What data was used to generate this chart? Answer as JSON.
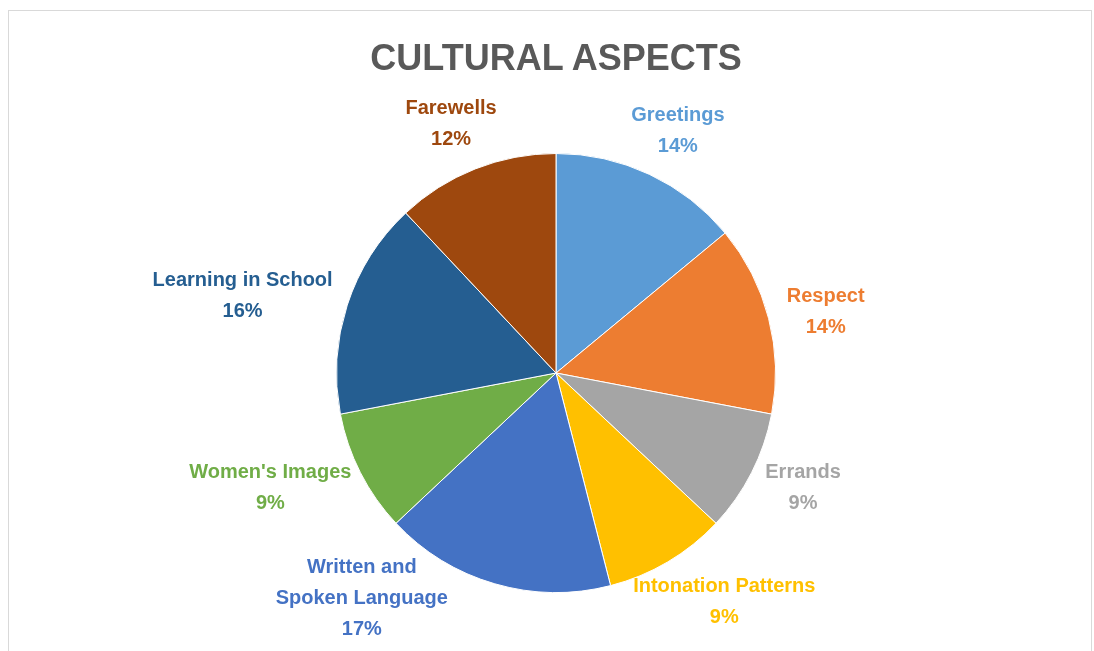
{
  "chart_data": {
    "type": "pie",
    "title": "CULTURAL ASPECTS",
    "categories": [
      "Greetings",
      "Respect",
      "Errands",
      "Intonation Patterns",
      "Written and Spoken Language",
      "Women's Images",
      "Learning in School",
      "Farewells"
    ],
    "values": [
      14,
      14,
      9,
      9,
      17,
      9,
      16,
      12
    ],
    "colors": [
      "#5b9bd5",
      "#ed7d31",
      "#a5a5a5",
      "#ffc000",
      "#4472c4",
      "#70ad47",
      "#255e91",
      "#9e480e"
    ],
    "value_labels": [
      "14%",
      "14%",
      "9%",
      "9%",
      "17%",
      "9%",
      "16%",
      "12%"
    ],
    "legend": false
  }
}
